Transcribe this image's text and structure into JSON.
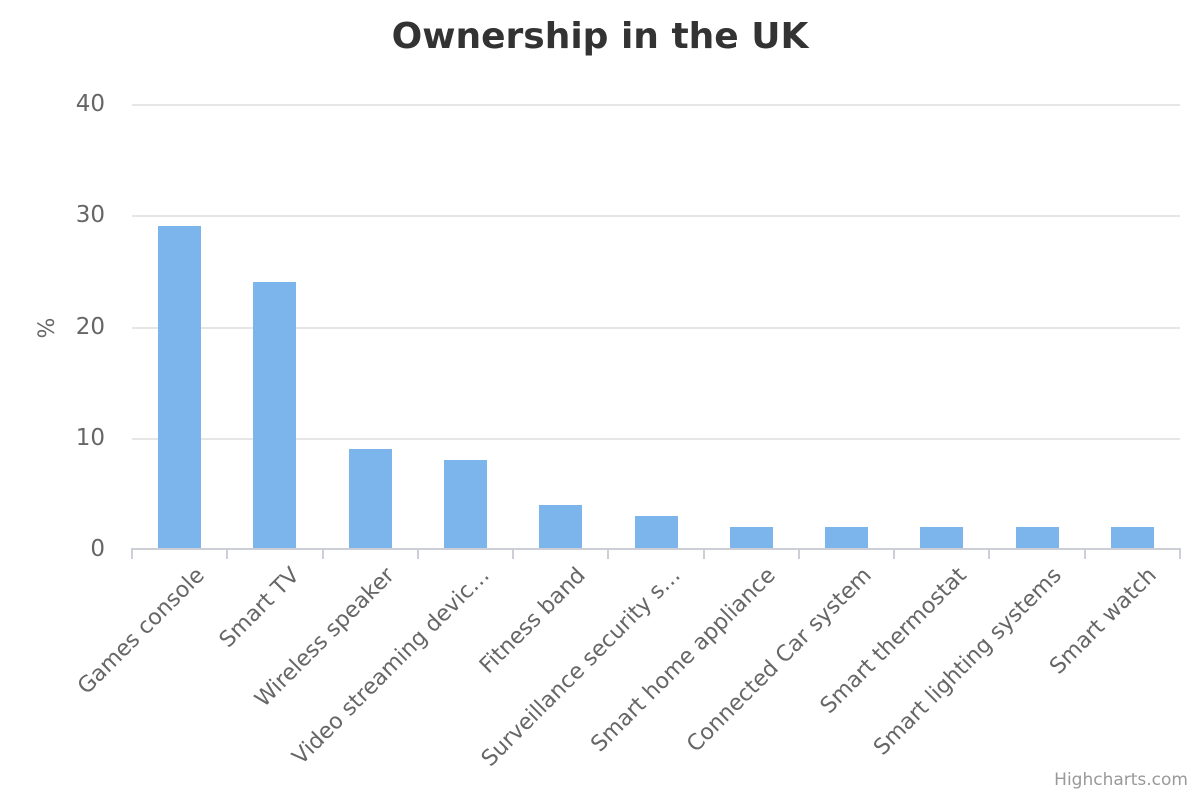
{
  "chart_data": {
    "type": "bar",
    "title": "Ownership in the UK",
    "xlabel": "",
    "ylabel": "%",
    "categories": [
      "Games console",
      "Smart TV",
      "Wireless speaker",
      "Video streaming devic…",
      "Fitness band",
      "Surveillance security s…",
      "Smart home appliance",
      "Connected Car system",
      "Smart thermostat",
      "Smart lighting systems",
      "Smart watch"
    ],
    "values": [
      29,
      24,
      9,
      8,
      4,
      3,
      2,
      2,
      2,
      2,
      2
    ],
    "ylim": [
      0,
      40
    ],
    "yticks": [
      0,
      10,
      20,
      30,
      40
    ],
    "grid": true,
    "legend": "none",
    "bar_color": "#7cb5ec"
  },
  "credits": {
    "label": "Highcharts.com"
  },
  "colors": {
    "bar": "#7cb5ec",
    "gridline": "#e6e6e6",
    "axis_line": "#ccd0d6",
    "title_text": "#333333",
    "axis_text": "#666666",
    "credits_text": "#999999",
    "background": "#ffffff"
  }
}
